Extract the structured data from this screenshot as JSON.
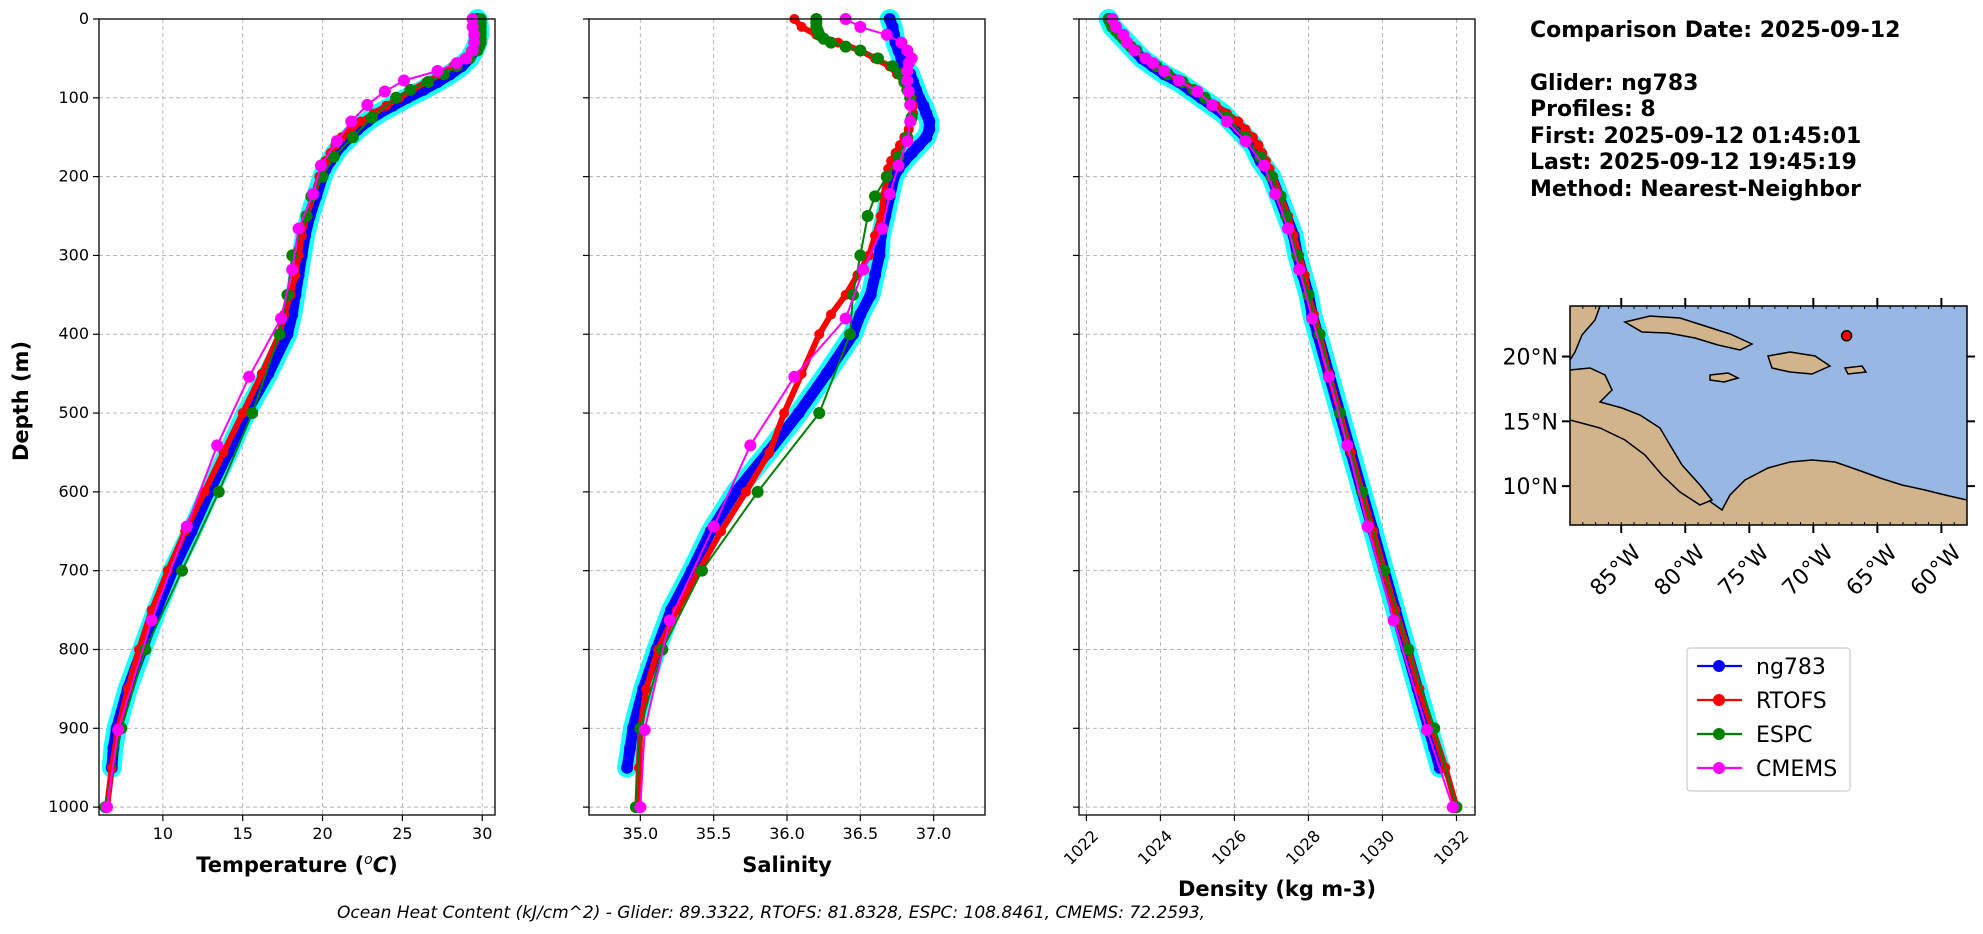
{
  "info": {
    "comparison_date": "Comparison Date: 2025-09-12",
    "glider": "Glider: ng783",
    "profiles": "Profiles: 8",
    "first": "First: 2025-09-12 01:45:01",
    "last": "Last: 2025-09-12 19:45:19",
    "method": "Method: Nearest-Neighbor"
  },
  "footer": "Ocean Heat Content (kJ/cm^2) - Glider: 89.3322,  RTOFS: 81.8328,  ESPC: 108.8461,  CMEMS: 72.2593,",
  "colors": {
    "ng783": "#0000ff",
    "ng783_spread": "#00ffff",
    "RTOFS": "#ff0000",
    "ESPC": "#008000",
    "CMEMS": "#ff00ff",
    "grid": "#b0b0b0",
    "ocean": "#98b7e2",
    "land": "#d2b48c"
  },
  "legend": {
    "entries": [
      "ng783",
      "RTOFS",
      "ESPC",
      "CMEMS"
    ]
  },
  "map": {
    "lat_ticks": [
      "10°N",
      "15°N",
      "20°N"
    ],
    "lon_ticks": [
      "85°W",
      "80°W",
      "75°W",
      "70°W",
      "65°W",
      "60°W"
    ],
    "lon_range": [
      -89.0,
      -58.0
    ],
    "lat_range": [
      7.0,
      23.9
    ],
    "glider_position": {
      "lon": -67.4,
      "lat": 21.6
    }
  },
  "chart_data": [
    {
      "type": "line",
      "xlabel": "Temperature (°C)",
      "ylabel": "Depth (m)",
      "xlim": [
        6.0,
        30.8
      ],
      "ylim": [
        1010,
        0
      ],
      "xticks": [
        10,
        15,
        20,
        25,
        30
      ],
      "yticks": [
        0,
        100,
        200,
        300,
        400,
        500,
        600,
        700,
        800,
        900,
        1000
      ],
      "grid": true,
      "series": [
        {
          "name": "ng783",
          "depth": [
            0,
            10,
            20,
            30,
            40,
            50,
            60,
            70,
            80,
            90,
            100,
            110,
            120,
            130,
            140,
            150,
            160,
            170,
            180,
            190,
            200,
            225,
            250,
            275,
            300,
            325,
            350,
            375,
            400,
            450,
            500,
            550,
            600,
            650,
            700,
            750,
            800,
            850,
            900,
            925,
            950
          ],
          "values": [
            29.7,
            29.8,
            29.8,
            29.7,
            29.5,
            29.2,
            28.7,
            28.0,
            27.2,
            26.3,
            25.3,
            24.4,
            23.5,
            22.8,
            22.2,
            21.7,
            21.2,
            20.8,
            20.5,
            20.2,
            20.0,
            19.6,
            19.2,
            18.9,
            18.7,
            18.5,
            18.3,
            18.1,
            17.8,
            16.6,
            15.2,
            14.1,
            12.9,
            11.8,
            10.6,
            9.6,
            8.7,
            7.8,
            7.1,
            6.9,
            6.8
          ]
        },
        {
          "name": "RTOFS",
          "depth": [
            0,
            10,
            20,
            30,
            40,
            50,
            60,
            70,
            80,
            90,
            100,
            110,
            120,
            130,
            140,
            150,
            160,
            170,
            180,
            190,
            200,
            225,
            250,
            275,
            300,
            325,
            350,
            375,
            400,
            450,
            500,
            550,
            600,
            650,
            700,
            750,
            800,
            850,
            900,
            950,
            1000
          ],
          "values": [
            29.6,
            29.6,
            29.6,
            29.5,
            29.3,
            28.9,
            28.2,
            27.4,
            26.5,
            25.6,
            24.8,
            24.0,
            23.2,
            22.4,
            21.8,
            21.2,
            20.8,
            20.5,
            20.2,
            20.0,
            19.8,
            19.4,
            19.0,
            18.7,
            18.5,
            18.3,
            18.0,
            17.6,
            17.3,
            16.2,
            15.0,
            13.8,
            12.6,
            11.4,
            10.3,
            9.3,
            8.5,
            7.8,
            7.2,
            6.8,
            6.5
          ]
        },
        {
          "name": "ESPC",
          "depth": [
            0,
            5,
            10,
            15,
            20,
            25,
            30,
            35,
            40,
            50,
            60,
            70,
            80,
            90,
            100,
            125,
            150,
            175,
            200,
            225,
            250,
            300,
            350,
            400,
            500,
            600,
            700,
            800,
            900,
            1000
          ],
          "values": [
            29.9,
            29.9,
            29.9,
            29.9,
            29.9,
            29.9,
            29.9,
            29.8,
            29.7,
            29.2,
            28.4,
            27.6,
            26.6,
            25.5,
            24.6,
            23.1,
            21.9,
            20.7,
            20.0,
            19.3,
            19.0,
            18.1,
            17.8,
            17.3,
            15.6,
            13.5,
            11.2,
            8.9,
            7.4,
            6.4
          ]
        },
        {
          "name": "CMEMS",
          "depth": [
            0,
            10,
            20,
            30,
            40,
            50,
            56,
            66,
            78,
            92,
            109,
            130,
            155,
            186,
            222,
            266,
            318,
            380,
            454,
            541,
            644,
            763,
            902,
            1000
          ],
          "values": [
            29.4,
            29.4,
            29.5,
            29.5,
            29.4,
            29.0,
            28.4,
            27.2,
            25.1,
            23.9,
            22.8,
            21.8,
            20.9,
            19.9,
            19.4,
            18.5,
            18.1,
            17.4,
            15.4,
            13.4,
            11.5,
            9.3,
            7.2,
            6.5
          ]
        }
      ]
    },
    {
      "type": "line",
      "xlabel": "Salinity",
      "xlim": [
        34.65,
        37.35
      ],
      "ylim": [
        1010,
        0
      ],
      "xticks": [
        35.0,
        35.5,
        36.0,
        36.5,
        37.0
      ],
      "yticks": [
        0,
        100,
        200,
        300,
        400,
        500,
        600,
        700,
        800,
        900,
        1000
      ],
      "grid": true,
      "series": [
        {
          "name": "ng783",
          "depth": [
            0,
            10,
            20,
            30,
            40,
            50,
            60,
            70,
            80,
            90,
            100,
            110,
            120,
            130,
            140,
            150,
            160,
            170,
            180,
            190,
            200,
            225,
            250,
            275,
            300,
            325,
            350,
            375,
            400,
            450,
            500,
            550,
            600,
            650,
            700,
            750,
            800,
            850,
            900,
            925,
            950
          ],
          "values": [
            36.7,
            36.72,
            36.73,
            36.74,
            36.76,
            36.78,
            36.8,
            36.84,
            36.86,
            36.88,
            36.9,
            36.93,
            36.95,
            36.97,
            36.97,
            36.95,
            36.9,
            36.85,
            36.8,
            36.76,
            36.73,
            36.7,
            36.67,
            36.64,
            36.63,
            36.6,
            36.57,
            36.5,
            36.45,
            36.27,
            36.08,
            35.87,
            35.65,
            35.48,
            35.35,
            35.21,
            35.11,
            35.02,
            34.95,
            34.93,
            34.91
          ]
        },
        {
          "name": "RTOFS",
          "depth": [
            0,
            10,
            20,
            30,
            40,
            50,
            60,
            70,
            80,
            90,
            100,
            110,
            120,
            130,
            140,
            150,
            160,
            170,
            180,
            190,
            200,
            225,
            250,
            275,
            300,
            325,
            350,
            375,
            400,
            450,
            500,
            550,
            600,
            650,
            700,
            750,
            800,
            850,
            900,
            950,
            1000
          ],
          "values": [
            36.05,
            36.1,
            36.2,
            36.35,
            36.5,
            36.6,
            36.7,
            36.75,
            36.8,
            36.83,
            36.85,
            36.86,
            36.86,
            36.85,
            36.83,
            36.8,
            36.77,
            36.74,
            36.71,
            36.69,
            36.68,
            36.66,
            36.64,
            36.6,
            36.56,
            36.48,
            36.4,
            36.3,
            36.22,
            36.1,
            35.98,
            35.88,
            35.72,
            35.55,
            35.4,
            35.25,
            35.12,
            35.04,
            35.0,
            34.99,
            34.98
          ]
        },
        {
          "name": "ESPC",
          "depth": [
            0,
            5,
            10,
            15,
            20,
            25,
            30,
            35,
            40,
            50,
            60,
            70,
            80,
            90,
            100,
            125,
            150,
            175,
            200,
            225,
            250,
            300,
            350,
            400,
            500,
            600,
            700,
            800,
            900,
            1000
          ],
          "values": [
            36.2,
            36.2,
            36.2,
            36.21,
            36.22,
            36.25,
            36.3,
            36.4,
            36.5,
            36.62,
            36.72,
            36.77,
            36.8,
            36.82,
            36.84,
            36.85,
            36.82,
            36.76,
            36.68,
            36.6,
            36.55,
            36.5,
            36.45,
            36.43,
            36.22,
            35.8,
            35.42,
            35.15,
            35.0,
            34.97
          ]
        },
        {
          "name": "CMEMS",
          "depth": [
            0,
            10,
            20,
            30,
            40,
            50,
            56,
            66,
            78,
            92,
            109,
            130,
            155,
            186,
            222,
            266,
            318,
            380,
            454,
            541,
            644,
            763,
            902,
            1000
          ],
          "values": [
            36.4,
            36.5,
            36.68,
            36.78,
            36.82,
            36.85,
            36.83,
            36.82,
            36.82,
            36.83,
            36.84,
            36.84,
            36.82,
            36.76,
            36.7,
            36.65,
            36.52,
            36.4,
            36.05,
            35.75,
            35.5,
            35.2,
            35.03,
            35.0
          ]
        }
      ]
    },
    {
      "type": "line",
      "xlabel": "Density (kg m-3)",
      "xlim": [
        1021.8,
        1032.5
      ],
      "ylim": [
        1010,
        0
      ],
      "xticks": [
        1022,
        1024,
        1026,
        1028,
        1030,
        1032
      ],
      "yticks": [
        0,
        100,
        200,
        300,
        400,
        500,
        600,
        700,
        800,
        900,
        1000
      ],
      "grid": true,
      "series": [
        {
          "name": "ng783",
          "depth": [
            0,
            10,
            20,
            30,
            40,
            50,
            60,
            70,
            80,
            90,
            100,
            110,
            120,
            130,
            140,
            150,
            160,
            170,
            180,
            190,
            200,
            225,
            250,
            275,
            300,
            325,
            350,
            375,
            400,
            450,
            500,
            550,
            600,
            650,
            700,
            750,
            800,
            850,
            900,
            925,
            950
          ],
          "values": [
            1022.6,
            1022.7,
            1022.9,
            1023.1,
            1023.3,
            1023.5,
            1023.8,
            1024.1,
            1024.5,
            1024.8,
            1025.1,
            1025.4,
            1025.7,
            1025.9,
            1026.1,
            1026.3,
            1026.5,
            1026.6,
            1026.7,
            1026.85,
            1027.0,
            1027.2,
            1027.4,
            1027.6,
            1027.7,
            1027.85,
            1028.0,
            1028.1,
            1028.25,
            1028.55,
            1028.85,
            1029.15,
            1029.45,
            1029.75,
            1030.05,
            1030.35,
            1030.65,
            1030.95,
            1031.25,
            1031.4,
            1031.55
          ]
        },
        {
          "name": "RTOFS",
          "depth": [
            0,
            10,
            20,
            30,
            40,
            50,
            60,
            70,
            80,
            90,
            100,
            110,
            120,
            130,
            140,
            150,
            160,
            170,
            180,
            190,
            200,
            225,
            250,
            275,
            300,
            325,
            350,
            375,
            400,
            450,
            500,
            550,
            600,
            650,
            700,
            750,
            800,
            850,
            900,
            950,
            1000
          ],
          "values": [
            1022.6,
            1022.7,
            1022.9,
            1023.1,
            1023.3,
            1023.6,
            1023.9,
            1024.2,
            1024.6,
            1024.9,
            1025.2,
            1025.5,
            1025.8,
            1026.1,
            1026.3,
            1026.5,
            1026.65,
            1026.75,
            1026.85,
            1026.95,
            1027.05,
            1027.25,
            1027.45,
            1027.6,
            1027.75,
            1027.9,
            1028.0,
            1028.15,
            1028.3,
            1028.55,
            1028.85,
            1029.15,
            1029.45,
            1029.75,
            1030.05,
            1030.35,
            1030.7,
            1031.0,
            1031.35,
            1031.7,
            1032.0
          ]
        },
        {
          "name": "ESPC",
          "depth": [
            0,
            5,
            10,
            15,
            20,
            25,
            30,
            35,
            40,
            50,
            60,
            70,
            80,
            90,
            100,
            125,
            150,
            175,
            200,
            225,
            250,
            300,
            350,
            400,
            500,
            600,
            700,
            800,
            900,
            1000
          ],
          "values": [
            1022.6,
            1022.65,
            1022.7,
            1022.8,
            1022.9,
            1023.0,
            1023.1,
            1023.2,
            1023.35,
            1023.6,
            1023.9,
            1024.2,
            1024.6,
            1024.9,
            1025.2,
            1025.8,
            1026.3,
            1026.7,
            1027.0,
            1027.25,
            1027.4,
            1027.7,
            1028.0,
            1028.3,
            1028.85,
            1029.45,
            1030.05,
            1030.7,
            1031.4,
            1032.0
          ]
        },
        {
          "name": "CMEMS",
          "depth": [
            0,
            10,
            20,
            30,
            40,
            50,
            56,
            66,
            78,
            92,
            109,
            130,
            155,
            186,
            222,
            266,
            318,
            380,
            454,
            541,
            644,
            763,
            902,
            1000
          ],
          "values": [
            1022.7,
            1022.8,
            1023.0,
            1023.1,
            1023.3,
            1023.6,
            1023.8,
            1024.1,
            1024.5,
            1025.0,
            1025.4,
            1025.8,
            1026.3,
            1026.8,
            1027.1,
            1027.45,
            1027.75,
            1028.1,
            1028.55,
            1029.05,
            1029.6,
            1030.3,
            1031.2,
            1031.9
          ]
        }
      ]
    }
  ]
}
